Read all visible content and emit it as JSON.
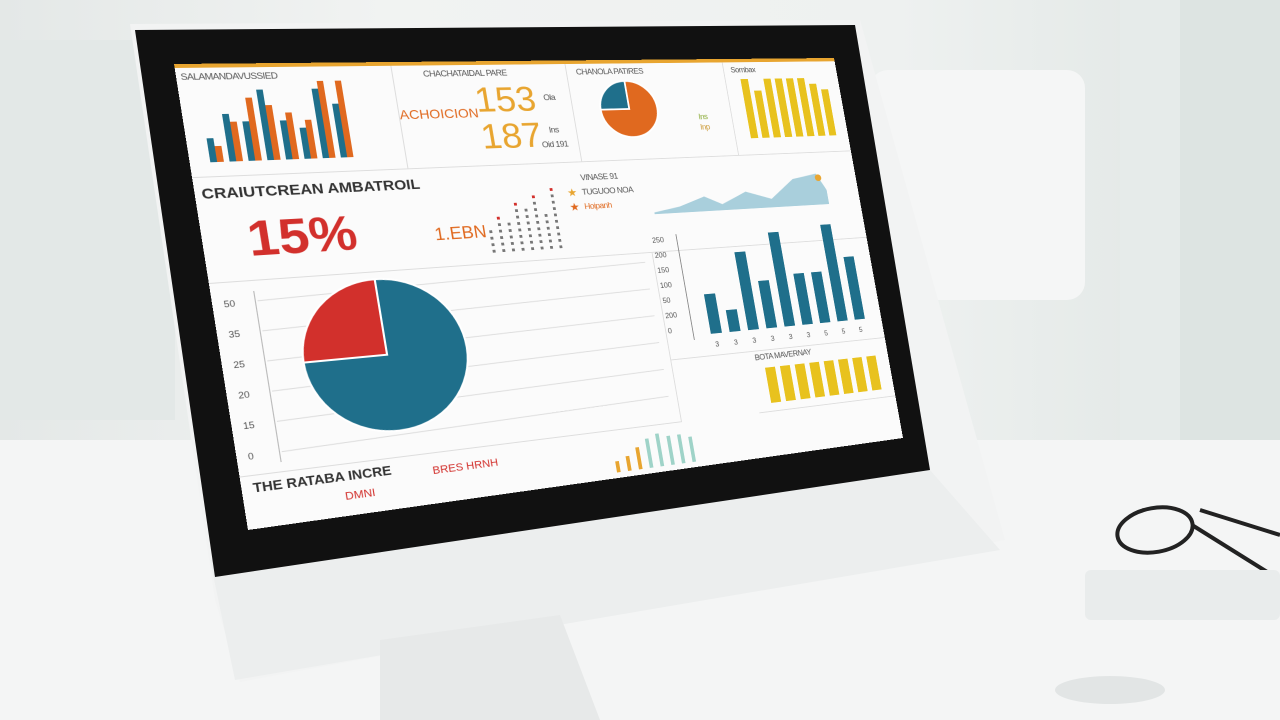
{
  "colors": {
    "teal": "#1f6f8b",
    "red": "#d2302c",
    "orange": "#e0691f",
    "yellow": "#e8c21e",
    "gold": "#e8a530",
    "bezel": "#111111"
  },
  "top_row": {
    "bar_panel": {
      "title": "SALAMANDAVUSSIED",
      "teal": [
        3,
        6,
        5,
        9,
        5,
        4,
        9,
        7
      ],
      "red": [
        2,
        5,
        8,
        7,
        6,
        5,
        10,
        10
      ]
    },
    "kpi_panel": {
      "title": "CHACHATAIDAL PARE",
      "label": "ACHOICION",
      "value1": "153",
      "value2": "187",
      "side1": "Ola",
      "side2": "Ins",
      "side3": "Oid 191"
    },
    "pie_panel": {
      "title": "CHANOLA PATIRES",
      "slices": [
        75,
        25
      ],
      "legend": [
        "Ins",
        "Inp"
      ]
    },
    "yellow_panel": {
      "title": "Sombax",
      "values": [
        10,
        8,
        10,
        10,
        10,
        10,
        9,
        8
      ]
    }
  },
  "middle_row": {
    "title": "CRAIUTCREAN AMBATROIL",
    "percent": "15%",
    "metric": "1.EBN",
    "legend_title": "VINASE 91",
    "legend": [
      {
        "icon": "star-icon",
        "label": "TUGUOO NOA"
      },
      {
        "icon": "star-icon",
        "label": "Hoipanh"
      }
    ]
  },
  "bottom_left": {
    "axis_ticks": [
      "50",
      "35",
      "25",
      "20",
      "15",
      "0"
    ],
    "pie_slices": [
      75,
      25
    ]
  },
  "bottom_right": {
    "axis_ticks": [
      "250",
      "200",
      "150",
      "100",
      "50",
      "200",
      "0"
    ],
    "values": [
      45,
      25,
      90,
      55,
      110,
      60,
      60,
      115,
      75
    ],
    "x_labels": [
      "3",
      "3",
      "3",
      "3",
      "3",
      "3",
      "5",
      "5",
      "5"
    ]
  },
  "footer": {
    "title": "THE RATABA INCRE",
    "label1": "DMNI",
    "label2": "BRES HRNH",
    "yellow_title": "BOTA MAVERNAY",
    "yellow_values": [
      9,
      9,
      9,
      9,
      9,
      9,
      9,
      9
    ],
    "mini_bars": [
      3,
      4,
      6,
      8,
      9,
      8,
      8,
      7
    ]
  }
}
